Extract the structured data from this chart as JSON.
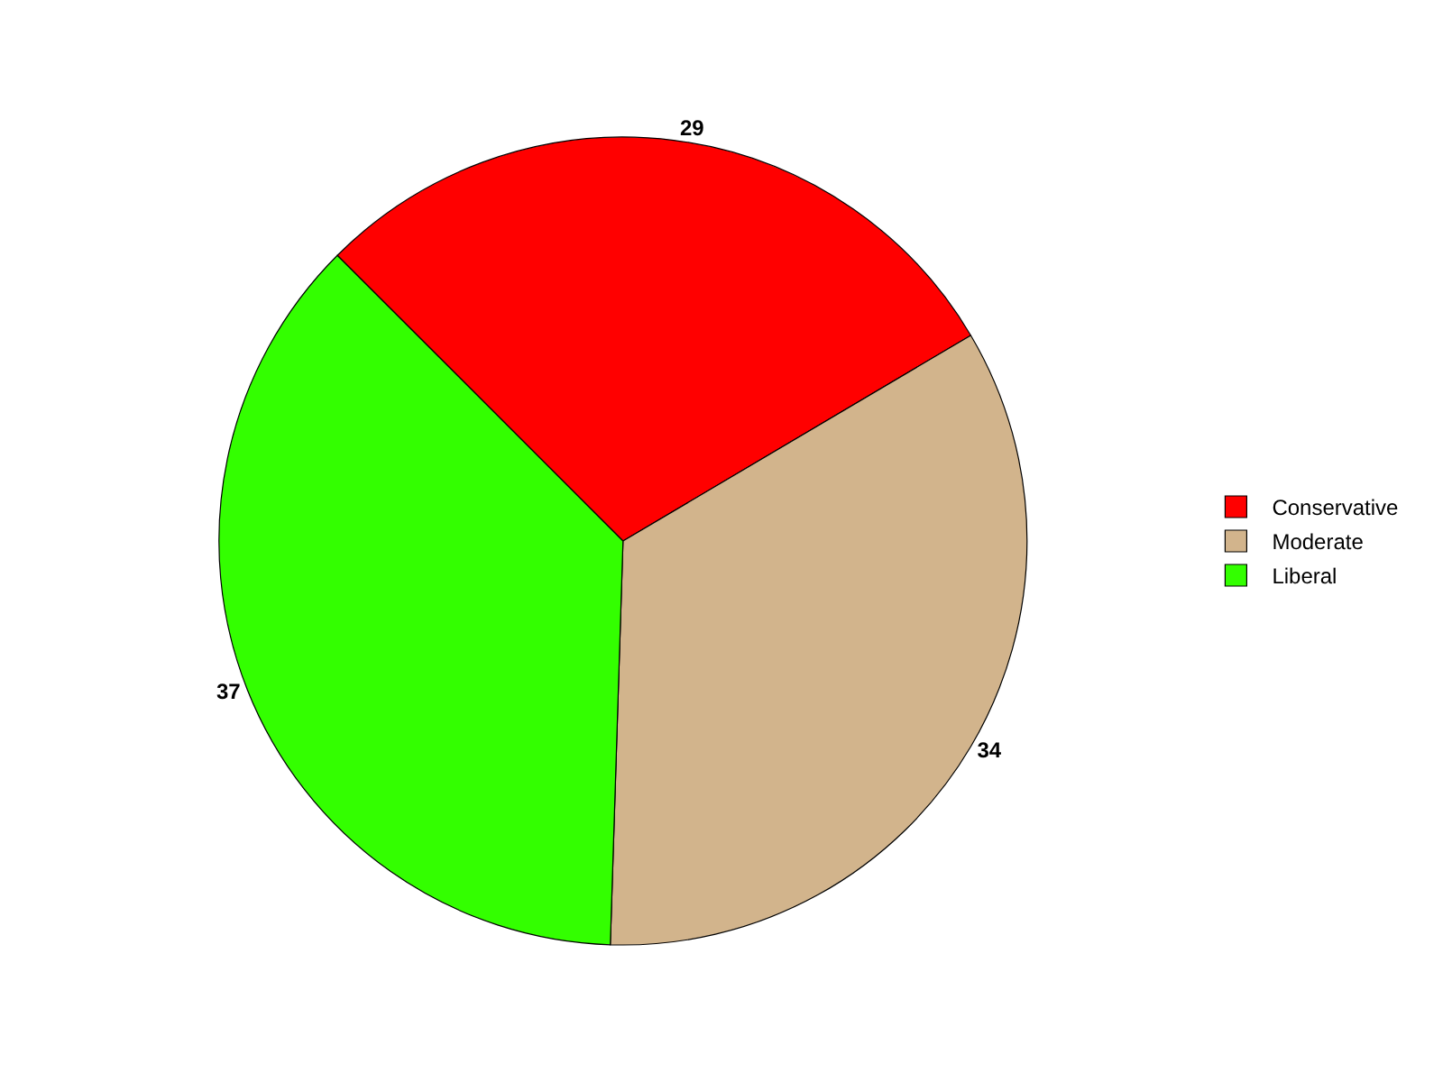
{
  "chart_data": {
    "type": "pie",
    "categories": [
      "Conservative",
      "Moderate",
      "Liberal"
    ],
    "values": [
      29,
      34,
      37
    ],
    "colors": [
      "#ff0000",
      "#d2b48c",
      "#33ff00"
    ],
    "data_labels": true,
    "legend": "right"
  }
}
